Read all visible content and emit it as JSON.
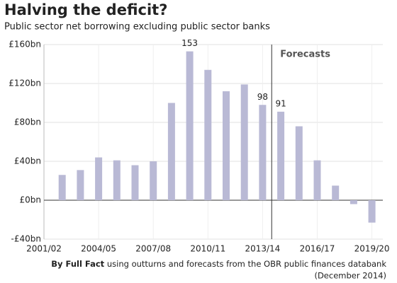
{
  "chart_data": {
    "type": "bar",
    "title": "Halving the deficit?",
    "subtitle": "Public sector net borrowing excluding public sector banks",
    "categories": [
      "2001/02",
      null,
      null,
      "2004/05",
      null,
      null,
      "2007/08",
      null,
      null,
      "2010/11",
      null,
      null,
      "2013/14",
      null,
      null,
      "2016/17",
      null,
      null,
      "2019/20"
    ],
    "values": [
      null,
      26,
      31,
      44,
      41,
      36,
      40,
      100,
      153,
      134,
      112,
      119,
      98,
      91,
      76,
      41,
      15,
      -4,
      -23
    ],
    "value_labels": [
      null,
      null,
      null,
      null,
      null,
      null,
      null,
      null,
      "153",
      null,
      null,
      null,
      "98",
      "91",
      null,
      null,
      null,
      null,
      null
    ],
    "color": "#b9b9d5",
    "ylim": [
      -40,
      160
    ],
    "yticks": [
      {
        "value": -40,
        "label": "-£40bn"
      },
      {
        "value": 0,
        "label": "£0bn"
      },
      {
        "value": 40,
        "label": "£40bn"
      },
      {
        "value": 80,
        "label": "£80bn"
      },
      {
        "value": 120,
        "label": "£120bn"
      },
      {
        "value": 160,
        "label": "£160bn"
      }
    ],
    "grid": true,
    "annotation": "Forecasts",
    "source_bold": "By Full Fact",
    "source": "using outturns and forecasts from the OBR public finances databank",
    "source_line2": "(December 2014)"
  }
}
